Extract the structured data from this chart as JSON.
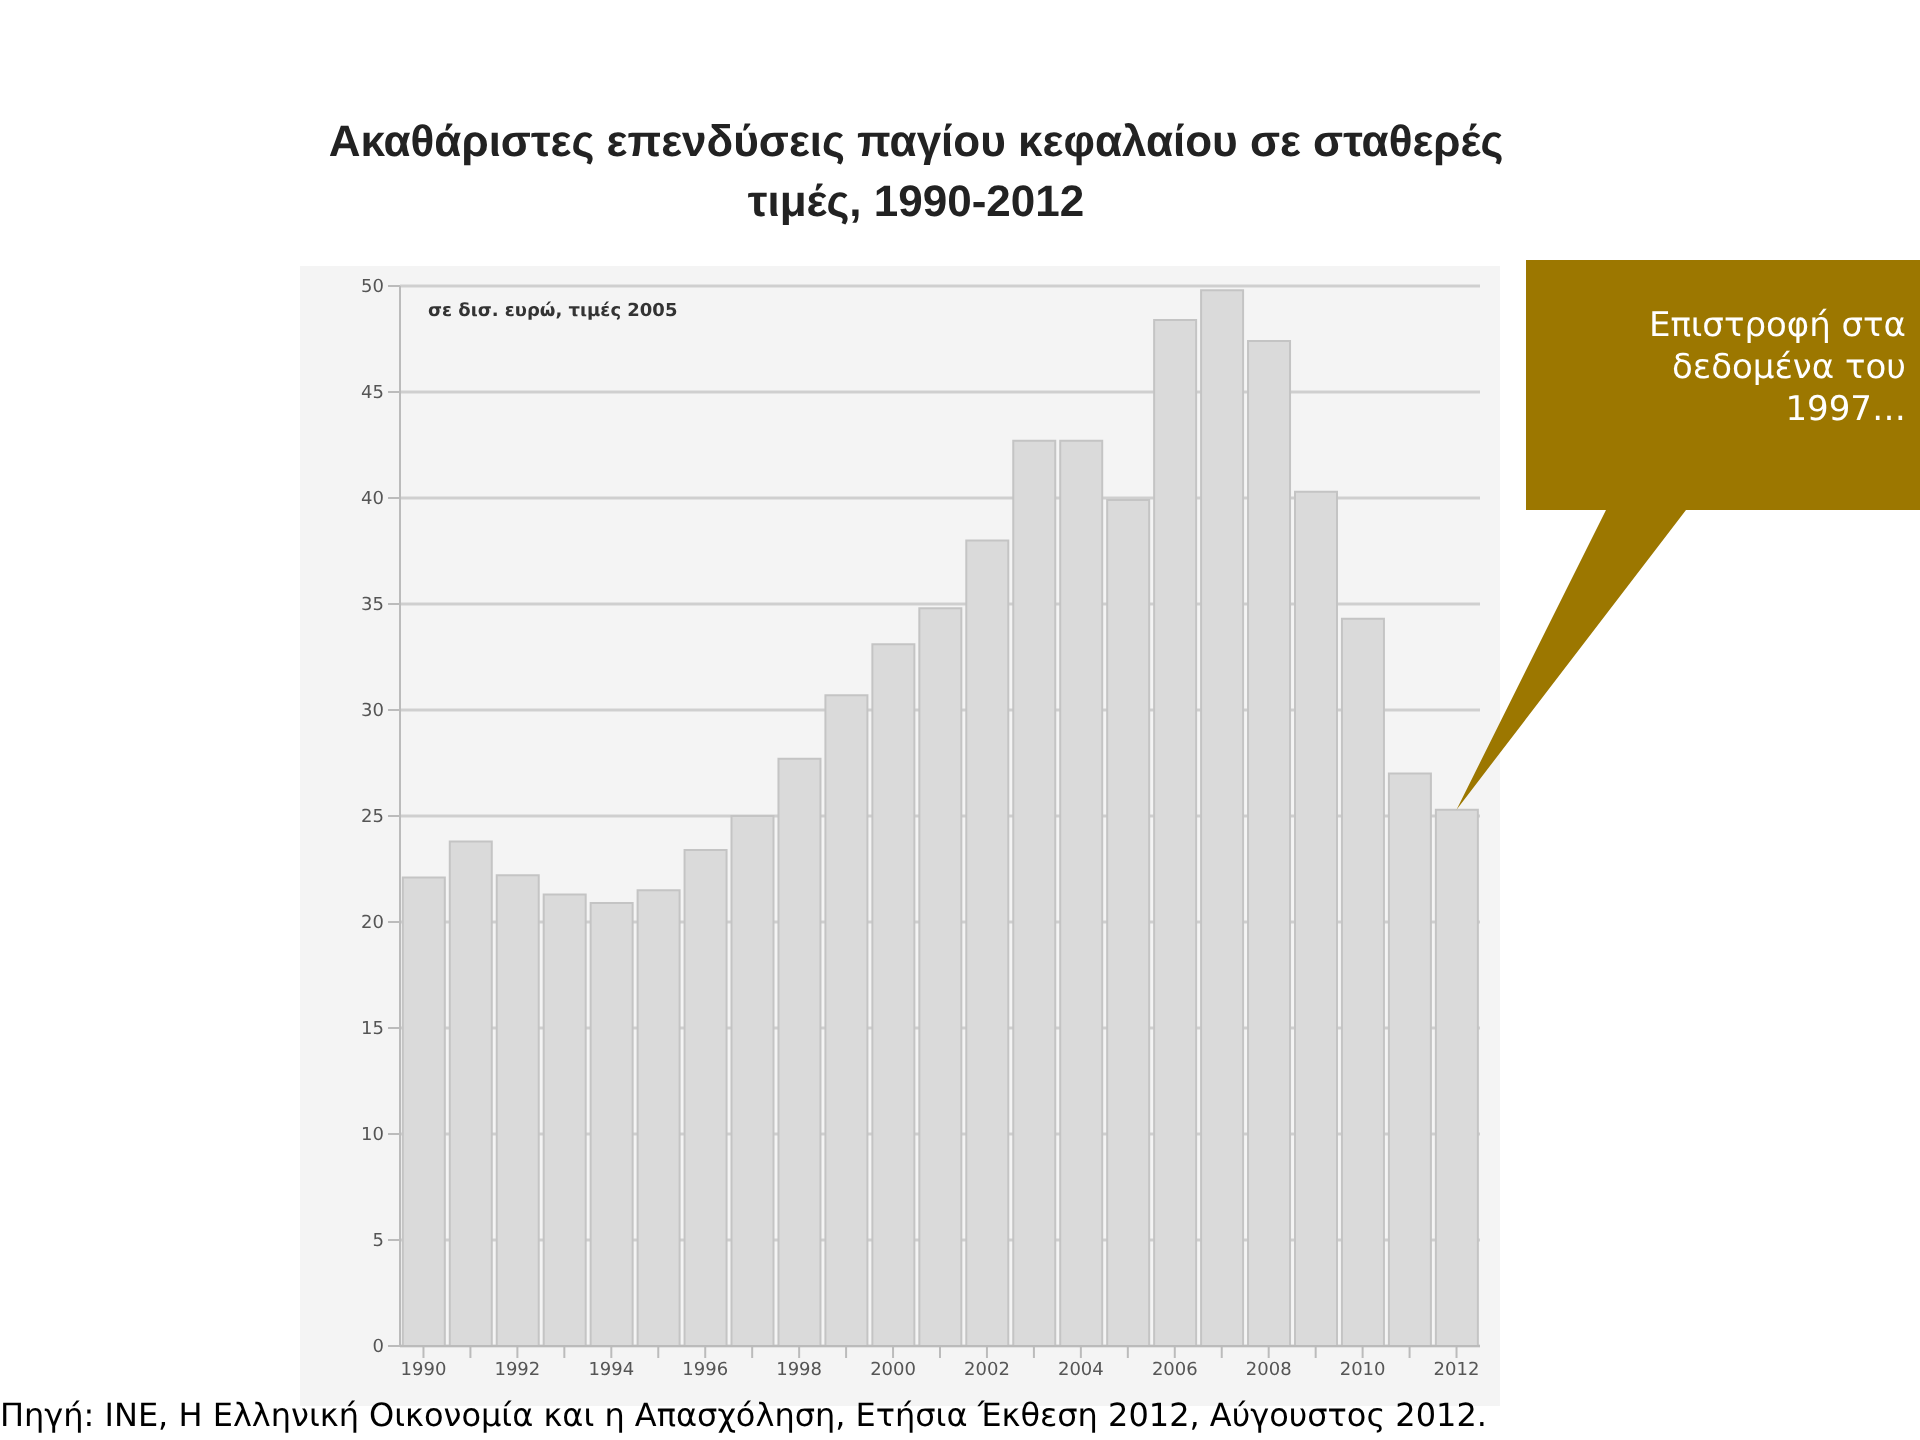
{
  "chart_data": {
    "type": "bar",
    "title": "Ακαθάριστες επενδύσεις παγίου κεφαλαίου σε σταθερές τιμές, 1990-2012",
    "subtitle": "σε δισ. ευρώ, τιμές 2005",
    "categories": [
      "1990",
      null,
      "1992",
      null,
      "1994",
      null,
      "1996",
      null,
      "1998",
      null,
      "2000",
      null,
      "2002",
      null,
      "2004",
      null,
      "2006",
      null,
      "2008",
      null,
      "2010",
      null,
      "2012"
    ],
    "values": [
      22.1,
      23.8,
      22.2,
      21.3,
      20.9,
      21.5,
      23.4,
      25.0,
      27.7,
      30.7,
      33.1,
      34.8,
      38.0,
      42.7,
      42.7,
      39.9,
      48.4,
      49.8,
      47.4,
      40.3,
      34.3,
      27.0,
      25.3
    ],
    "color": "#dadada",
    "ylim": [
      0,
      50
    ],
    "yticks": [
      0,
      5,
      10,
      15,
      20,
      25,
      30,
      35,
      40,
      45,
      50
    ],
    "grid": "y",
    "annotations": [
      "Επιστροφή στα δεδομένα του 1997…",
      "Πηγή: ΙΝΕ, Η Ελληνική Οικονομία και η Απασχόληση, Ετήσια Έκθεση 2012, Αύγουστος 2012."
    ]
  }
}
